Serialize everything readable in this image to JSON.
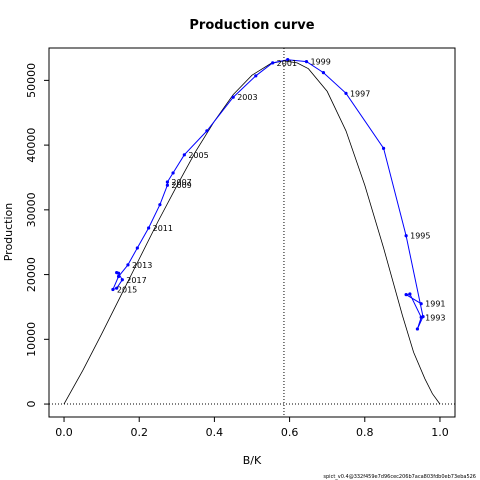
{
  "chart_data": {
    "type": "line",
    "title": "Production curve",
    "xlabel": "B/K",
    "ylabel": "Production",
    "xlim": [
      -0.04,
      1.04
    ],
    "ylim": [
      -2000,
      55000
    ],
    "x_ticks": [
      0.0,
      0.2,
      0.4,
      0.6,
      0.8,
      1.0
    ],
    "x_tick_labels": [
      "0.0",
      "0.2",
      "0.4",
      "0.6",
      "0.8",
      "1.0"
    ],
    "y_ticks": [
      0,
      10000,
      20000,
      30000,
      40000,
      50000
    ],
    "y_tick_labels": [
      "0",
      "10000",
      "20000",
      "30000",
      "40000",
      "50000"
    ],
    "reference_lines": {
      "vertical_x": 0.585,
      "horizontal_y": 0
    },
    "theoretical_curve": {
      "color": "#000000",
      "x": [
        0.0,
        0.05,
        0.1,
        0.15,
        0.2,
        0.25,
        0.3,
        0.35,
        0.4,
        0.45,
        0.5,
        0.55,
        0.585,
        0.62,
        0.65,
        0.7,
        0.75,
        0.8,
        0.85,
        0.9,
        0.93,
        0.96,
        0.98,
        1.0
      ],
      "y": [
        0,
        5200,
        10800,
        16600,
        22400,
        28200,
        33700,
        39000,
        43700,
        47800,
        50800,
        52600,
        53000,
        52700,
        51800,
        48300,
        42200,
        33800,
        24100,
        13700,
        8000,
        3900,
        1600,
        0
      ]
    },
    "series": [
      {
        "color": "#0000ff",
        "x": [
          0.95,
          0.91,
          0.92,
          0.95,
          0.94,
          0.955,
          0.91,
          0.85,
          0.75,
          0.69,
          0.645,
          0.595,
          0.555,
          0.51,
          0.45,
          0.38,
          0.32,
          0.29,
          0.275,
          0.275,
          0.255,
          0.225,
          0.195,
          0.17,
          0.145,
          0.13,
          0.14,
          0.155,
          0.145,
          0.14
        ],
        "y": [
          15500,
          16900,
          17000,
          13400,
          11600,
          13500,
          26000,
          39500,
          48000,
          51200,
          52900,
          53200,
          52700,
          50700,
          47400,
          42200,
          38500,
          35700,
          34300,
          33800,
          30800,
          27200,
          24100,
          21500,
          19700,
          17700,
          17900,
          19200,
          20200,
          20300
        ],
        "labels": [
          {
            "index": 0,
            "text": "1991"
          },
          {
            "index": 3,
            "text": "1993"
          },
          {
            "index": 6,
            "text": "1995"
          },
          {
            "index": 8,
            "text": "1997"
          },
          {
            "index": 10,
            "text": "1999"
          },
          {
            "index": 12,
            "text": "2001"
          },
          {
            "index": 14,
            "text": "2003"
          },
          {
            "index": 16,
            "text": "2005"
          },
          {
            "index": 18,
            "text": "2007"
          },
          {
            "index": 19,
            "text": "2009"
          },
          {
            "index": 21,
            "text": "2011"
          },
          {
            "index": 23,
            "text": "2013"
          },
          {
            "index": 25,
            "text": "2015"
          },
          {
            "index": 27,
            "text": "2017"
          }
        ]
      }
    ],
    "footer": "spict_v0.4@332f459e7d96cec206b7aca803fdb0eb73eba526"
  }
}
